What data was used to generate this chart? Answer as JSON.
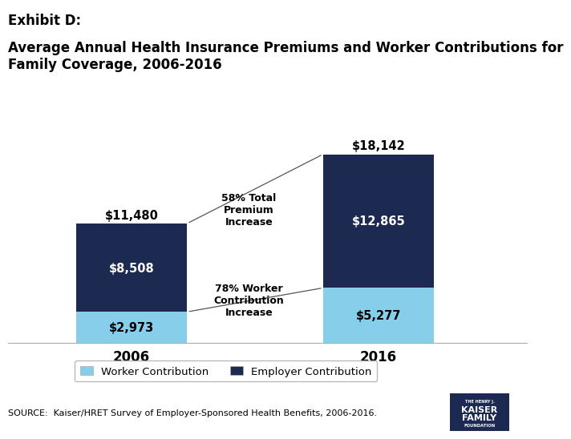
{
  "title_line1": "Exhibit D:",
  "title_line2": "Average Annual Health Insurance Premiums and Worker Contributions for\nFamily Coverage, 2006-2016",
  "years": [
    "2006",
    "2016"
  ],
  "worker_contributions": [
    2973,
    5277
  ],
  "employer_contributions": [
    8508,
    12865
  ],
  "totals": [
    11480,
    18142
  ],
  "worker_color": "#87CEEB",
  "employer_color": "#1C2951",
  "annotation_58_text": "58% Total\nPremium\nIncrease",
  "annotation_78_text": "78% Worker\nContribution\nIncrease",
  "source_text": "SOURCE:  Kaiser/HRET Survey of Employer-Sponsored Health Benefits, 2006-2016.",
  "legend_worker": "Worker Contribution",
  "legend_employer": "Employer Contribution",
  "background_color": "#ffffff",
  "ylim": [
    0,
    21000
  ],
  "bar_positions": [
    1,
    3
  ],
  "bar_width": 0.9,
  "xlim": [
    0,
    4.2
  ]
}
